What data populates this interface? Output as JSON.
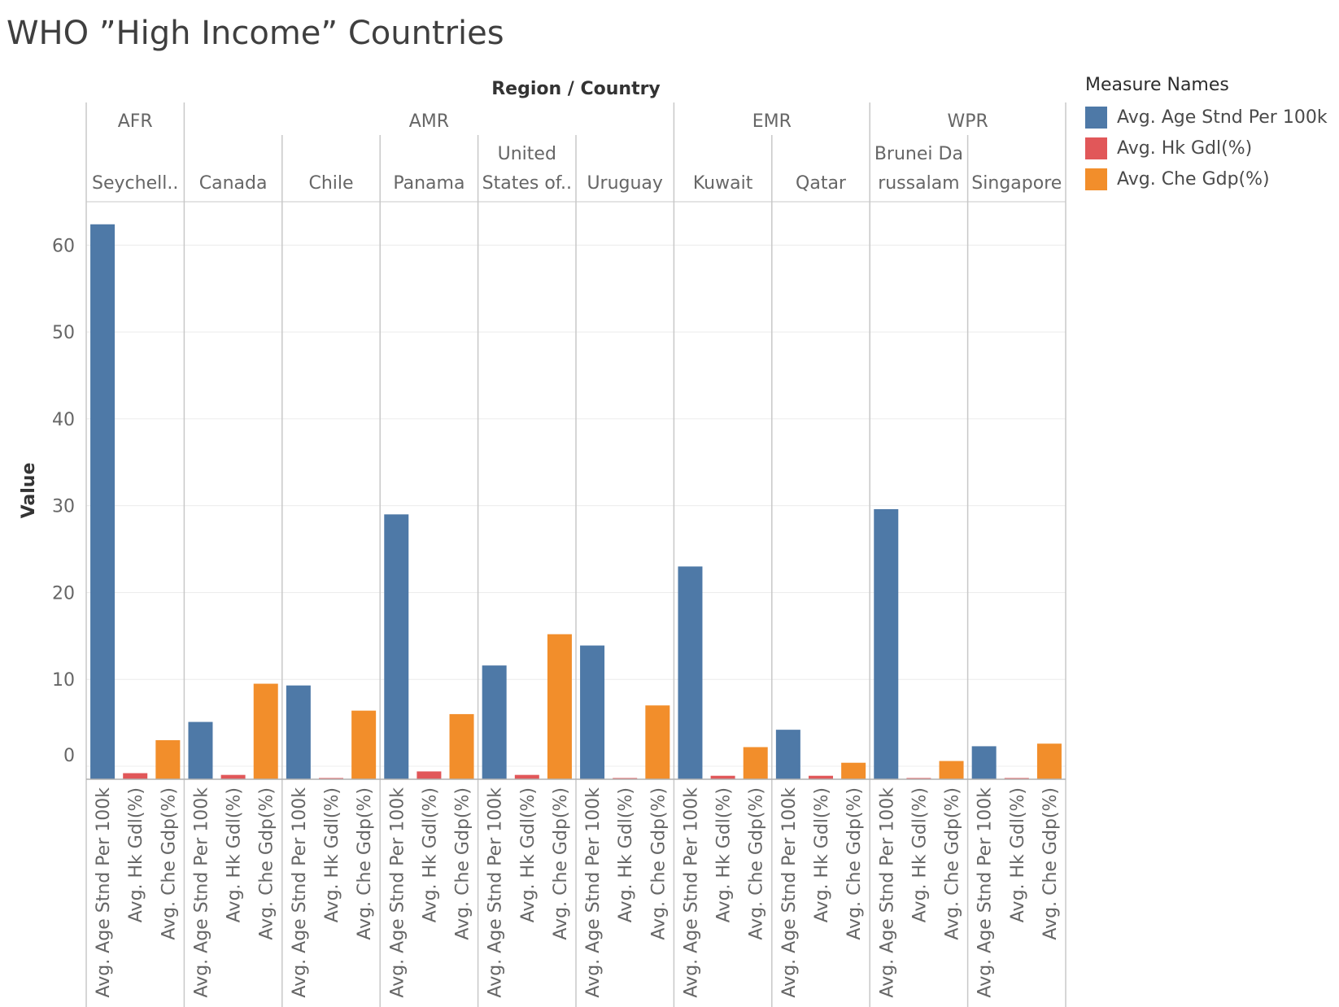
{
  "title": "WHO ”High Income” Countries",
  "colors": {
    "Avg. Age Stnd Per 100k": "#4e79a7",
    "Avg. Hk Gdl(%)": "#e15759",
    "Avg. Che Gdp(%)": "#f28e2b",
    "gridline": "#ececec",
    "divider": "#c8c8c8",
    "text": "#666666"
  },
  "legend": {
    "title": "Measure Names",
    "items": [
      {
        "label": "Avg. Age Stnd Per 100k",
        "color": "#4e79a7"
      },
      {
        "label": "Avg. Hk Gdl(%)",
        "color": "#e15759"
      },
      {
        "label": "Avg. Che Gdp(%)",
        "color": "#f28e2b"
      }
    ]
  },
  "chart_data": {
    "type": "bar",
    "title": "WHO ”High Income” Countries",
    "header_title": "Region / Country",
    "ylabel": "Value",
    "ylim": [
      -1.5,
      65
    ],
    "yticks": [
      0,
      10,
      20,
      30,
      40,
      50,
      60
    ],
    "grid": true,
    "legend_position": "right",
    "measures": [
      "Avg. Age Stnd Per 100k",
      "Avg. Hk Gdl(%)",
      "Avg. Che Gdp(%)"
    ],
    "regions": [
      {
        "name": "AFR",
        "countries": [
          "Seychell.."
        ]
      },
      {
        "name": "AMR",
        "countries": [
          "Canada",
          "Chile",
          "Panama",
          "United States of..",
          "Uruguay"
        ]
      },
      {
        "name": "EMR",
        "countries": [
          "Kuwait",
          "Qatar"
        ]
      },
      {
        "name": "WPR",
        "countries": [
          "Brunei Darussalam",
          "Singapore"
        ]
      }
    ],
    "country_labels": [
      [
        "Seychell.."
      ],
      [
        "Canada"
      ],
      [
        "Chile"
      ],
      [
        "Panama"
      ],
      [
        "United",
        "States of.."
      ],
      [
        "Uruguay"
      ],
      [
        "Kuwait"
      ],
      [
        "Qatar"
      ],
      [
        "Brunei Da",
        "russalam"
      ],
      [
        "Singapore"
      ]
    ],
    "series": [
      {
        "name": "Avg. Age Stnd Per 100k",
        "values": [
          62.4,
          5.1,
          9.3,
          29.0,
          11.6,
          13.9,
          23.0,
          4.2,
          29.6,
          2.3
        ]
      },
      {
        "name": "Avg. Hk Gdl(%)",
        "values": [
          -0.8,
          -1.0,
          -1.4,
          -0.6,
          -1.0,
          -1.4,
          -1.1,
          -1.1,
          -1.4,
          -1.4
        ]
      },
      {
        "name": "Avg. Che Gdp(%)",
        "values": [
          3.0,
          9.5,
          6.4,
          6.0,
          15.2,
          7.0,
          2.2,
          0.4,
          0.6,
          2.6
        ]
      }
    ]
  }
}
